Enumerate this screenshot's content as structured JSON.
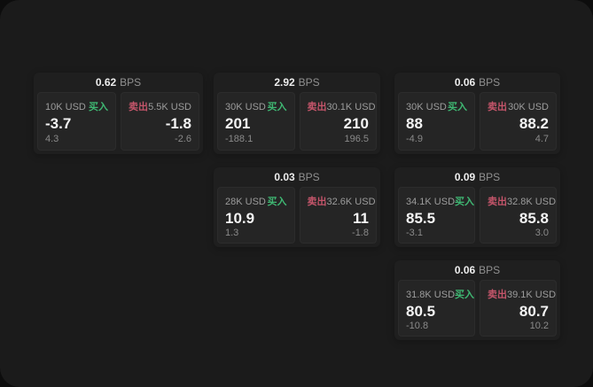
{
  "labels": {
    "buy": "买入",
    "sell": "卖出",
    "unit": "BPS"
  },
  "colors": {
    "buy": "#3fb873",
    "sell": "#c4556a",
    "window_bg": "#1b1b1b",
    "card_bg": "#1f1f1f",
    "panel_bg": "#252525"
  },
  "cards": [
    {
      "bps": "0.62",
      "buy": {
        "amount": "10K USD",
        "value": "-3.7",
        "sub": "4.3"
      },
      "sell": {
        "amount": "5.5K USD",
        "value": "-1.8",
        "sub": "-2.6"
      }
    },
    {
      "bps": "2.92",
      "buy": {
        "amount": "30K USD",
        "value": "201",
        "sub": "-188.1"
      },
      "sell": {
        "amount": "30.1K USD",
        "value": "210",
        "sub": "196.5"
      }
    },
    {
      "bps": "0.06",
      "buy": {
        "amount": "30K USD",
        "value": "88",
        "sub": "-4.9"
      },
      "sell": {
        "amount": "30K USD",
        "value": "88.2",
        "sub": "4.7"
      }
    },
    {
      "bps": "0.03",
      "buy": {
        "amount": "28K USD",
        "value": "10.9",
        "sub": "1.3"
      },
      "sell": {
        "amount": "32.6K USD",
        "value": "11",
        "sub": "-1.8"
      }
    },
    {
      "bps": "0.09",
      "buy": {
        "amount": "34.1K USD",
        "value": "85.5",
        "sub": "-3.1"
      },
      "sell": {
        "amount": "32.8K USD",
        "value": "85.8",
        "sub": "3.0"
      }
    },
    {
      "bps": "0.06",
      "buy": {
        "amount": "31.8K USD",
        "value": "80.5",
        "sub": "-10.8"
      },
      "sell": {
        "amount": "39.1K USD",
        "value": "80.7",
        "sub": "10.2"
      }
    }
  ]
}
